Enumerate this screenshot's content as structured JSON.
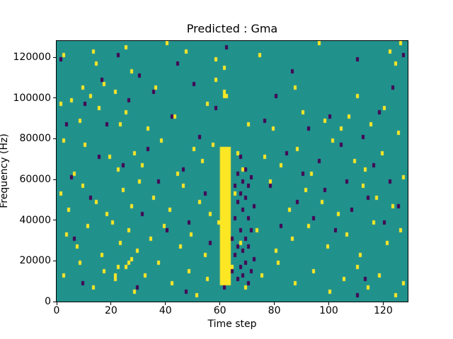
{
  "chart_data": {
    "type": "heatmap",
    "title": "Predicted : Gma",
    "xlabel": "Time step",
    "ylabel": "Frequency (Hz)",
    "xlim": [
      0,
      129
    ],
    "ylim": [
      0,
      128000
    ],
    "xticks": [
      0,
      20,
      40,
      60,
      80,
      100,
      120
    ],
    "yticks": [
      0,
      20000,
      40000,
      60000,
      80000,
      100000,
      120000
    ],
    "grid": false,
    "legend": "none",
    "colors": {
      "background": "#21918c",
      "high": "#fde725",
      "low": "#440154",
      "axes": "#000000",
      "figure_background": "#ffffff"
    },
    "cell": {
      "time": 1,
      "freq": 2000
    },
    "yellow_band": {
      "t0": 60,
      "t1": 63,
      "f0": 8000,
      "f1": 76000
    },
    "yellow_cells": [
      [
        2,
        120000
      ],
      [
        13,
        122000
      ],
      [
        14,
        116000
      ],
      [
        25,
        124000
      ],
      [
        27,
        112000
      ],
      [
        40,
        126000
      ],
      [
        47,
        122000
      ],
      [
        58,
        118000
      ],
      [
        61,
        114000
      ],
      [
        74,
        120000
      ],
      [
        96,
        126000
      ],
      [
        122,
        122000
      ],
      [
        124,
        116000
      ],
      [
        126,
        126000
      ],
      [
        5,
        98000
      ],
      [
        9,
        104000
      ],
      [
        12,
        100000
      ],
      [
        17,
        106000
      ],
      [
        21,
        102000
      ],
      [
        36,
        104000
      ],
      [
        58,
        108000
      ],
      [
        61,
        100000
      ],
      [
        61,
        102000
      ],
      [
        62,
        100000
      ],
      [
        87,
        104000
      ],
      [
        110,
        100000
      ],
      [
        1,
        96000
      ],
      [
        8,
        88000
      ],
      [
        15,
        94000
      ],
      [
        23,
        86000
      ],
      [
        25,
        92000
      ],
      [
        33,
        84000
      ],
      [
        43,
        90000
      ],
      [
        55,
        96000
      ],
      [
        70,
        86000
      ],
      [
        79,
        84000
      ],
      [
        90,
        92000
      ],
      [
        98,
        88000
      ],
      [
        104,
        84000
      ],
      [
        107,
        90000
      ],
      [
        115,
        86000
      ],
      [
        120,
        94000
      ],
      [
        125,
        82000
      ],
      [
        2,
        78000
      ],
      [
        6,
        62000
      ],
      [
        10,
        76000
      ],
      [
        19,
        70000
      ],
      [
        22,
        64000
      ],
      [
        28,
        72000
      ],
      [
        31,
        66000
      ],
      [
        38,
        78000
      ],
      [
        44,
        62000
      ],
      [
        50,
        74000
      ],
      [
        53,
        68000
      ],
      [
        57,
        76000
      ],
      [
        66,
        72000
      ],
      [
        68,
        64000
      ],
      [
        76,
        70000
      ],
      [
        82,
        66000
      ],
      [
        88,
        74000
      ],
      [
        93,
        62000
      ],
      [
        101,
        78000
      ],
      [
        109,
        68000
      ],
      [
        113,
        64000
      ],
      [
        119,
        72000
      ],
      [
        127,
        60000
      ],
      [
        1,
        52000
      ],
      [
        4,
        44000
      ],
      [
        9,
        56000
      ],
      [
        14,
        48000
      ],
      [
        18,
        42000
      ],
      [
        24,
        54000
      ],
      [
        27,
        46000
      ],
      [
        30,
        58000
      ],
      [
        35,
        50000
      ],
      [
        41,
        44000
      ],
      [
        46,
        56000
      ],
      [
        52,
        48000
      ],
      [
        56,
        42000
      ],
      [
        65,
        52000
      ],
      [
        72,
        46000
      ],
      [
        78,
        58000
      ],
      [
        85,
        44000
      ],
      [
        91,
        54000
      ],
      [
        97,
        48000
      ],
      [
        103,
        42000
      ],
      [
        112,
        56000
      ],
      [
        117,
        50000
      ],
      [
        123,
        46000
      ],
      [
        3,
        32000
      ],
      [
        7,
        26000
      ],
      [
        11,
        36000
      ],
      [
        16,
        22000
      ],
      [
        20,
        38000
      ],
      [
        23,
        28000
      ],
      [
        26,
        34000
      ],
      [
        29,
        24000
      ],
      [
        34,
        30000
      ],
      [
        39,
        36000
      ],
      [
        45,
        26000
      ],
      [
        49,
        32000
      ],
      [
        54,
        22000
      ],
      [
        59,
        38000
      ],
      [
        67,
        28000
      ],
      [
        73,
        34000
      ],
      [
        80,
        24000
      ],
      [
        86,
        30000
      ],
      [
        92,
        36000
      ],
      [
        99,
        26000
      ],
      [
        106,
        32000
      ],
      [
        111,
        22000
      ],
      [
        116,
        38000
      ],
      [
        121,
        28000
      ],
      [
        126,
        34000
      ],
      [
        2,
        12000
      ],
      [
        8,
        18000
      ],
      [
        13,
        6000
      ],
      [
        17,
        14000
      ],
      [
        21,
        10000
      ],
      [
        21,
        12000
      ],
      [
        22,
        16000
      ],
      [
        25,
        16000
      ],
      [
        26,
        18000
      ],
      [
        27,
        20000
      ],
      [
        28,
        4000
      ],
      [
        32,
        12000
      ],
      [
        37,
        18000
      ],
      [
        42,
        8000
      ],
      [
        48,
        14000
      ],
      [
        51,
        2000
      ],
      [
        55,
        10000
      ],
      [
        64,
        16000
      ],
      [
        69,
        6000
      ],
      [
        75,
        12000
      ],
      [
        81,
        18000
      ],
      [
        87,
        8000
      ],
      [
        94,
        14000
      ],
      [
        100,
        4000
      ],
      [
        105,
        10000
      ],
      [
        110,
        16000
      ],
      [
        114,
        6000
      ],
      [
        118,
        12000
      ],
      [
        124,
        2000
      ],
      [
        127,
        8000
      ]
    ],
    "purple_cells": [
      [
        64,
        14000
      ],
      [
        64,
        30000
      ],
      [
        65,
        22000
      ],
      [
        65,
        40000
      ],
      [
        65,
        56000
      ],
      [
        66,
        10000
      ],
      [
        66,
        26000
      ],
      [
        66,
        48000
      ],
      [
        66,
        62000
      ],
      [
        67,
        16000
      ],
      [
        67,
        34000
      ],
      [
        67,
        52000
      ],
      [
        67,
        70000
      ],
      [
        68,
        12000
      ],
      [
        68,
        24000
      ],
      [
        68,
        44000
      ],
      [
        68,
        58000
      ],
      [
        69,
        18000
      ],
      [
        69,
        30000
      ],
      [
        69,
        50000
      ],
      [
        69,
        64000
      ],
      [
        70,
        8000
      ],
      [
        70,
        26000
      ],
      [
        70,
        40000
      ],
      [
        70,
        56000
      ],
      [
        71,
        14000
      ],
      [
        71,
        34000
      ],
      [
        71,
        60000
      ],
      [
        72,
        20000
      ],
      [
        72,
        46000
      ],
      [
        1,
        118000
      ],
      [
        3,
        86000
      ],
      [
        5,
        60000
      ],
      [
        6,
        30000
      ],
      [
        9,
        8000
      ],
      [
        10,
        96000
      ],
      [
        12,
        50000
      ],
      [
        15,
        70000
      ],
      [
        16,
        108000
      ],
      [
        18,
        86000
      ],
      [
        22,
        120000
      ],
      [
        24,
        66000
      ],
      [
        26,
        98000
      ],
      [
        29,
        6000
      ],
      [
        30,
        110000
      ],
      [
        31,
        42000
      ],
      [
        33,
        74000
      ],
      [
        35,
        102000
      ],
      [
        37,
        58000
      ],
      [
        40,
        34000
      ],
      [
        42,
        90000
      ],
      [
        44,
        116000
      ],
      [
        46,
        64000
      ],
      [
        47,
        4000
      ],
      [
        48,
        38000
      ],
      [
        50,
        106000
      ],
      [
        52,
        80000
      ],
      [
        54,
        52000
      ],
      [
        56,
        28000
      ],
      [
        58,
        94000
      ],
      [
        61,
        6000
      ],
      [
        62,
        124000
      ],
      [
        76,
        88000
      ],
      [
        78,
        56000
      ],
      [
        80,
        100000
      ],
      [
        82,
        36000
      ],
      [
        84,
        72000
      ],
      [
        86,
        112000
      ],
      [
        88,
        48000
      ],
      [
        90,
        62000
      ],
      [
        92,
        84000
      ],
      [
        94,
        40000
      ],
      [
        96,
        68000
      ],
      [
        98,
        54000
      ],
      [
        100,
        90000
      ],
      [
        102,
        34000
      ],
      [
        104,
        76000
      ],
      [
        106,
        58000
      ],
      [
        108,
        44000
      ],
      [
        110,
        2000
      ],
      [
        110,
        118000
      ],
      [
        112,
        80000
      ],
      [
        113,
        10000
      ],
      [
        114,
        50000
      ],
      [
        116,
        66000
      ],
      [
        118,
        92000
      ],
      [
        120,
        38000
      ],
      [
        122,
        58000
      ],
      [
        123,
        104000
      ],
      [
        125,
        46000
      ],
      [
        127,
        120000
      ]
    ]
  }
}
